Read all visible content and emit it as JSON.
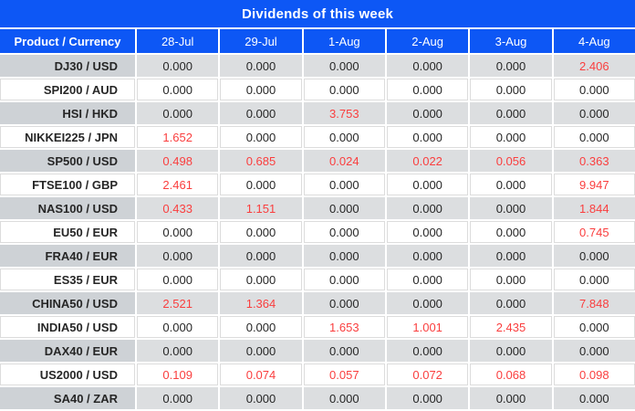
{
  "title": "Dividends of this week",
  "colors": {
    "header_blue": "#0d57f5",
    "highlight_red": "#fa3e3e",
    "row_gray_product": "#ced2d6",
    "row_gray_value": "#dcdee0",
    "text_dark": "#262626"
  },
  "table": {
    "product_header": "Product / Currency",
    "date_headers": [
      "28-Jul",
      "29-Jul",
      "1-Aug",
      "2-Aug",
      "3-Aug",
      "4-Aug"
    ],
    "rows": [
      {
        "product": "DJ30 / USD",
        "values": [
          "0.000",
          "0.000",
          "0.000",
          "0.000",
          "0.000",
          "2.406"
        ]
      },
      {
        "product": "SPI200 / AUD",
        "values": [
          "0.000",
          "0.000",
          "0.000",
          "0.000",
          "0.000",
          "0.000"
        ]
      },
      {
        "product": "HSI / HKD",
        "values": [
          "0.000",
          "0.000",
          "3.753",
          "0.000",
          "0.000",
          "0.000"
        ]
      },
      {
        "product": "NIKKEI225 / JPN",
        "values": [
          "1.652",
          "0.000",
          "0.000",
          "0.000",
          "0.000",
          "0.000"
        ]
      },
      {
        "product": "SP500 / USD",
        "values": [
          "0.498",
          "0.685",
          "0.024",
          "0.022",
          "0.056",
          "0.363"
        ]
      },
      {
        "product": "FTSE100 / GBP",
        "values": [
          "2.461",
          "0.000",
          "0.000",
          "0.000",
          "0.000",
          "9.947"
        ]
      },
      {
        "product": "NAS100 / USD",
        "values": [
          "0.433",
          "1.151",
          "0.000",
          "0.000",
          "0.000",
          "1.844"
        ]
      },
      {
        "product": "EU50 / EUR",
        "values": [
          "0.000",
          "0.000",
          "0.000",
          "0.000",
          "0.000",
          "0.745"
        ]
      },
      {
        "product": "FRA40 / EUR",
        "values": [
          "0.000",
          "0.000",
          "0.000",
          "0.000",
          "0.000",
          "0.000"
        ]
      },
      {
        "product": "ES35 / EUR",
        "values": [
          "0.000",
          "0.000",
          "0.000",
          "0.000",
          "0.000",
          "0.000"
        ]
      },
      {
        "product": "CHINA50 / USD",
        "values": [
          "2.521",
          "1.364",
          "0.000",
          "0.000",
          "0.000",
          "7.848"
        ]
      },
      {
        "product": "INDIA50 / USD",
        "values": [
          "0.000",
          "0.000",
          "1.653",
          "1.001",
          "2.435",
          "0.000"
        ]
      },
      {
        "product": "DAX40 / EUR",
        "values": [
          "0.000",
          "0.000",
          "0.000",
          "0.000",
          "0.000",
          "0.000"
        ]
      },
      {
        "product": "US2000 / USD",
        "values": [
          "0.109",
          "0.074",
          "0.057",
          "0.072",
          "0.068",
          "0.098"
        ]
      },
      {
        "product": "SA40 / ZAR",
        "values": [
          "0.000",
          "0.000",
          "0.000",
          "0.000",
          "0.000",
          "0.000"
        ]
      }
    ]
  }
}
